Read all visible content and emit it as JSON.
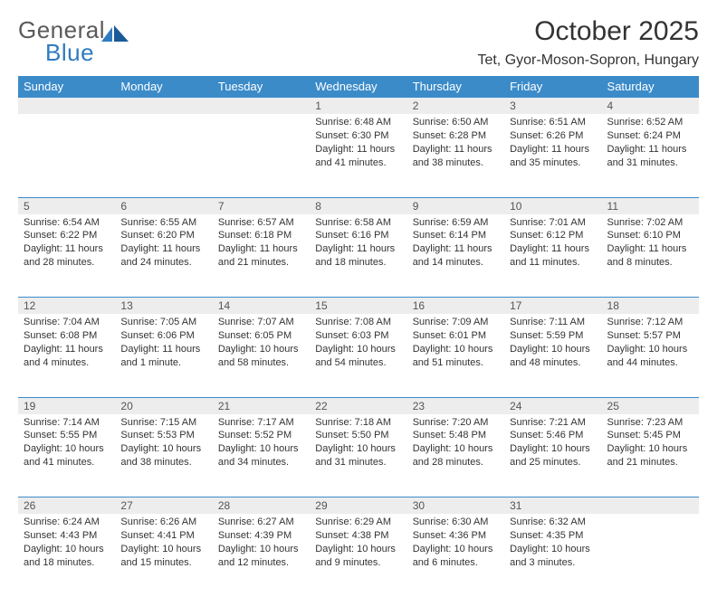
{
  "brand": {
    "part1": "General",
    "part2": "Blue"
  },
  "title": "October 2025",
  "location": "Tet, Gyor-Moson-Sopron, Hungary",
  "colors": {
    "header_bg": "#3b8bc9",
    "header_text": "#ffffff",
    "daynum_bg": "#ededed",
    "border": "#3b8bc9",
    "text": "#333333",
    "brand_gray": "#5a5a5a",
    "brand_blue": "#2f7bbf"
  },
  "day_headers": [
    "Sunday",
    "Monday",
    "Tuesday",
    "Wednesday",
    "Thursday",
    "Friday",
    "Saturday"
  ],
  "weeks": [
    [
      {
        "n": "",
        "sr": "",
        "ss": "",
        "dl": ""
      },
      {
        "n": "",
        "sr": "",
        "ss": "",
        "dl": ""
      },
      {
        "n": "",
        "sr": "",
        "ss": "",
        "dl": ""
      },
      {
        "n": "1",
        "sr": "Sunrise: 6:48 AM",
        "ss": "Sunset: 6:30 PM",
        "dl": "Daylight: 11 hours and 41 minutes."
      },
      {
        "n": "2",
        "sr": "Sunrise: 6:50 AM",
        "ss": "Sunset: 6:28 PM",
        "dl": "Daylight: 11 hours and 38 minutes."
      },
      {
        "n": "3",
        "sr": "Sunrise: 6:51 AM",
        "ss": "Sunset: 6:26 PM",
        "dl": "Daylight: 11 hours and 35 minutes."
      },
      {
        "n": "4",
        "sr": "Sunrise: 6:52 AM",
        "ss": "Sunset: 6:24 PM",
        "dl": "Daylight: 11 hours and 31 minutes."
      }
    ],
    [
      {
        "n": "5",
        "sr": "Sunrise: 6:54 AM",
        "ss": "Sunset: 6:22 PM",
        "dl": "Daylight: 11 hours and 28 minutes."
      },
      {
        "n": "6",
        "sr": "Sunrise: 6:55 AM",
        "ss": "Sunset: 6:20 PM",
        "dl": "Daylight: 11 hours and 24 minutes."
      },
      {
        "n": "7",
        "sr": "Sunrise: 6:57 AM",
        "ss": "Sunset: 6:18 PM",
        "dl": "Daylight: 11 hours and 21 minutes."
      },
      {
        "n": "8",
        "sr": "Sunrise: 6:58 AM",
        "ss": "Sunset: 6:16 PM",
        "dl": "Daylight: 11 hours and 18 minutes."
      },
      {
        "n": "9",
        "sr": "Sunrise: 6:59 AM",
        "ss": "Sunset: 6:14 PM",
        "dl": "Daylight: 11 hours and 14 minutes."
      },
      {
        "n": "10",
        "sr": "Sunrise: 7:01 AM",
        "ss": "Sunset: 6:12 PM",
        "dl": "Daylight: 11 hours and 11 minutes."
      },
      {
        "n": "11",
        "sr": "Sunrise: 7:02 AM",
        "ss": "Sunset: 6:10 PM",
        "dl": "Daylight: 11 hours and 8 minutes."
      }
    ],
    [
      {
        "n": "12",
        "sr": "Sunrise: 7:04 AM",
        "ss": "Sunset: 6:08 PM",
        "dl": "Daylight: 11 hours and 4 minutes."
      },
      {
        "n": "13",
        "sr": "Sunrise: 7:05 AM",
        "ss": "Sunset: 6:06 PM",
        "dl": "Daylight: 11 hours and 1 minute."
      },
      {
        "n": "14",
        "sr": "Sunrise: 7:07 AM",
        "ss": "Sunset: 6:05 PM",
        "dl": "Daylight: 10 hours and 58 minutes."
      },
      {
        "n": "15",
        "sr": "Sunrise: 7:08 AM",
        "ss": "Sunset: 6:03 PM",
        "dl": "Daylight: 10 hours and 54 minutes."
      },
      {
        "n": "16",
        "sr": "Sunrise: 7:09 AM",
        "ss": "Sunset: 6:01 PM",
        "dl": "Daylight: 10 hours and 51 minutes."
      },
      {
        "n": "17",
        "sr": "Sunrise: 7:11 AM",
        "ss": "Sunset: 5:59 PM",
        "dl": "Daylight: 10 hours and 48 minutes."
      },
      {
        "n": "18",
        "sr": "Sunrise: 7:12 AM",
        "ss": "Sunset: 5:57 PM",
        "dl": "Daylight: 10 hours and 44 minutes."
      }
    ],
    [
      {
        "n": "19",
        "sr": "Sunrise: 7:14 AM",
        "ss": "Sunset: 5:55 PM",
        "dl": "Daylight: 10 hours and 41 minutes."
      },
      {
        "n": "20",
        "sr": "Sunrise: 7:15 AM",
        "ss": "Sunset: 5:53 PM",
        "dl": "Daylight: 10 hours and 38 minutes."
      },
      {
        "n": "21",
        "sr": "Sunrise: 7:17 AM",
        "ss": "Sunset: 5:52 PM",
        "dl": "Daylight: 10 hours and 34 minutes."
      },
      {
        "n": "22",
        "sr": "Sunrise: 7:18 AM",
        "ss": "Sunset: 5:50 PM",
        "dl": "Daylight: 10 hours and 31 minutes."
      },
      {
        "n": "23",
        "sr": "Sunrise: 7:20 AM",
        "ss": "Sunset: 5:48 PM",
        "dl": "Daylight: 10 hours and 28 minutes."
      },
      {
        "n": "24",
        "sr": "Sunrise: 7:21 AM",
        "ss": "Sunset: 5:46 PM",
        "dl": "Daylight: 10 hours and 25 minutes."
      },
      {
        "n": "25",
        "sr": "Sunrise: 7:23 AM",
        "ss": "Sunset: 5:45 PM",
        "dl": "Daylight: 10 hours and 21 minutes."
      }
    ],
    [
      {
        "n": "26",
        "sr": "Sunrise: 6:24 AM",
        "ss": "Sunset: 4:43 PM",
        "dl": "Daylight: 10 hours and 18 minutes."
      },
      {
        "n": "27",
        "sr": "Sunrise: 6:26 AM",
        "ss": "Sunset: 4:41 PM",
        "dl": "Daylight: 10 hours and 15 minutes."
      },
      {
        "n": "28",
        "sr": "Sunrise: 6:27 AM",
        "ss": "Sunset: 4:39 PM",
        "dl": "Daylight: 10 hours and 12 minutes."
      },
      {
        "n": "29",
        "sr": "Sunrise: 6:29 AM",
        "ss": "Sunset: 4:38 PM",
        "dl": "Daylight: 10 hours and 9 minutes."
      },
      {
        "n": "30",
        "sr": "Sunrise: 6:30 AM",
        "ss": "Sunset: 4:36 PM",
        "dl": "Daylight: 10 hours and 6 minutes."
      },
      {
        "n": "31",
        "sr": "Sunrise: 6:32 AM",
        "ss": "Sunset: 4:35 PM",
        "dl": "Daylight: 10 hours and 3 minutes."
      },
      {
        "n": "",
        "sr": "",
        "ss": "",
        "dl": ""
      }
    ]
  ]
}
